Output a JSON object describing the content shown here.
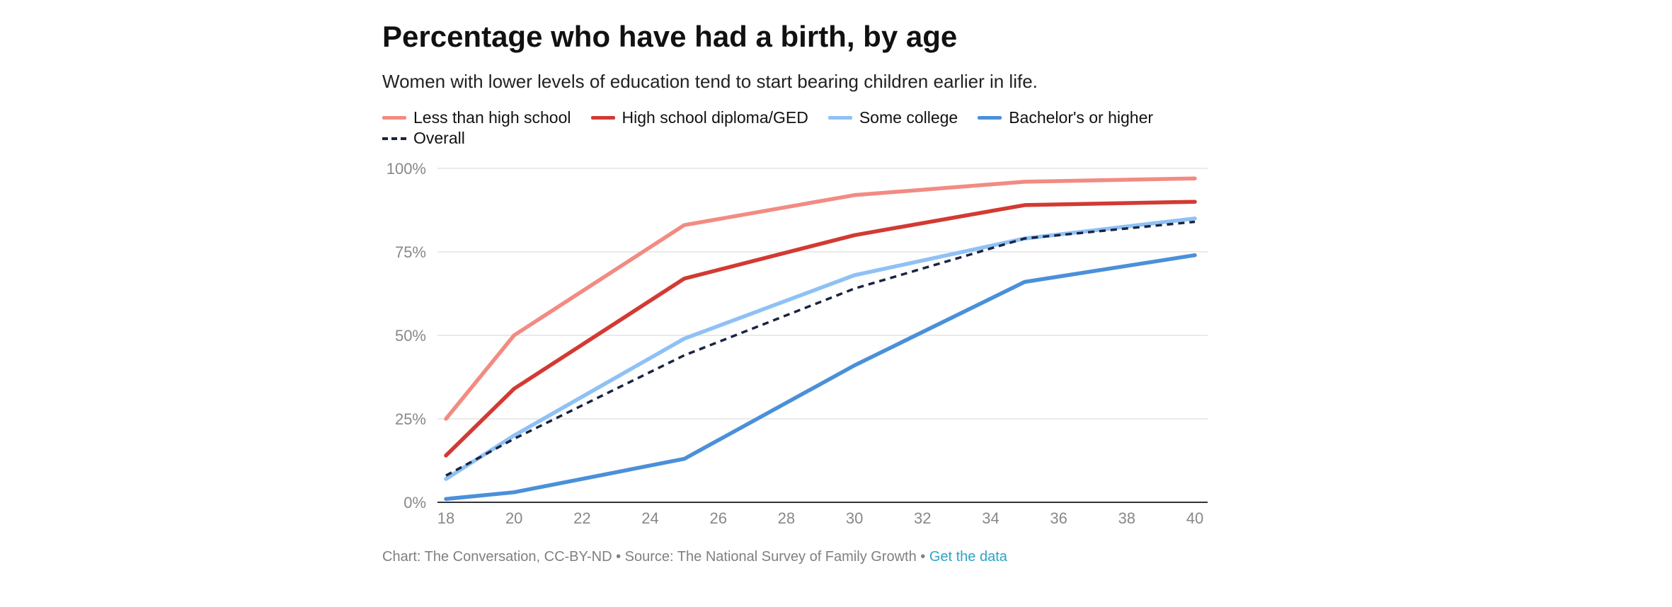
{
  "chart_data": {
    "type": "line",
    "title": "Percentage who have had a birth, by age",
    "subtitle": "Women with lower levels of education tend to start bearing children earlier in life.",
    "xlabel": "",
    "ylabel": "",
    "xlim": [
      18,
      40
    ],
    "ylim": [
      0,
      100
    ],
    "x_ticks": [
      "18",
      "20",
      "22",
      "24",
      "26",
      "28",
      "30",
      "32",
      "34",
      "36",
      "38",
      "40"
    ],
    "y_ticks": [
      "0%",
      "25%",
      "50%",
      "75%",
      "100%"
    ],
    "y_tick_values": [
      0,
      25,
      50,
      75,
      100
    ],
    "x_tick_values": [
      18,
      20,
      22,
      24,
      26,
      28,
      30,
      32,
      34,
      36,
      38,
      40
    ],
    "grid": true,
    "legend_position": "top-left",
    "x": [
      18,
      20,
      25,
      30,
      35,
      40
    ],
    "series": [
      {
        "name": "Less than high school",
        "color": "#f28b82",
        "dashed": false,
        "values": [
          25,
          50,
          83,
          92,
          96,
          97
        ]
      },
      {
        "name": "High school diploma/GED",
        "color": "#d23a32",
        "dashed": false,
        "values": [
          14,
          34,
          67,
          80,
          89,
          90
        ]
      },
      {
        "name": "Some college",
        "color": "#8fc1f5",
        "dashed": false,
        "values": [
          7,
          20,
          49,
          68,
          79,
          85
        ]
      },
      {
        "name": "Bachelor's or higher",
        "color": "#4a90d9",
        "dashed": false,
        "values": [
          1,
          3,
          13,
          41,
          66,
          74
        ]
      },
      {
        "name": "Overall",
        "color": "#1a2440",
        "dashed": true,
        "values": [
          8,
          19,
          44,
          64,
          79,
          84
        ]
      }
    ]
  },
  "footer": {
    "credit": "Chart: The Conversation, CC-BY-ND • Source: The National Survey of Family Growth • ",
    "link": "Get the data"
  }
}
